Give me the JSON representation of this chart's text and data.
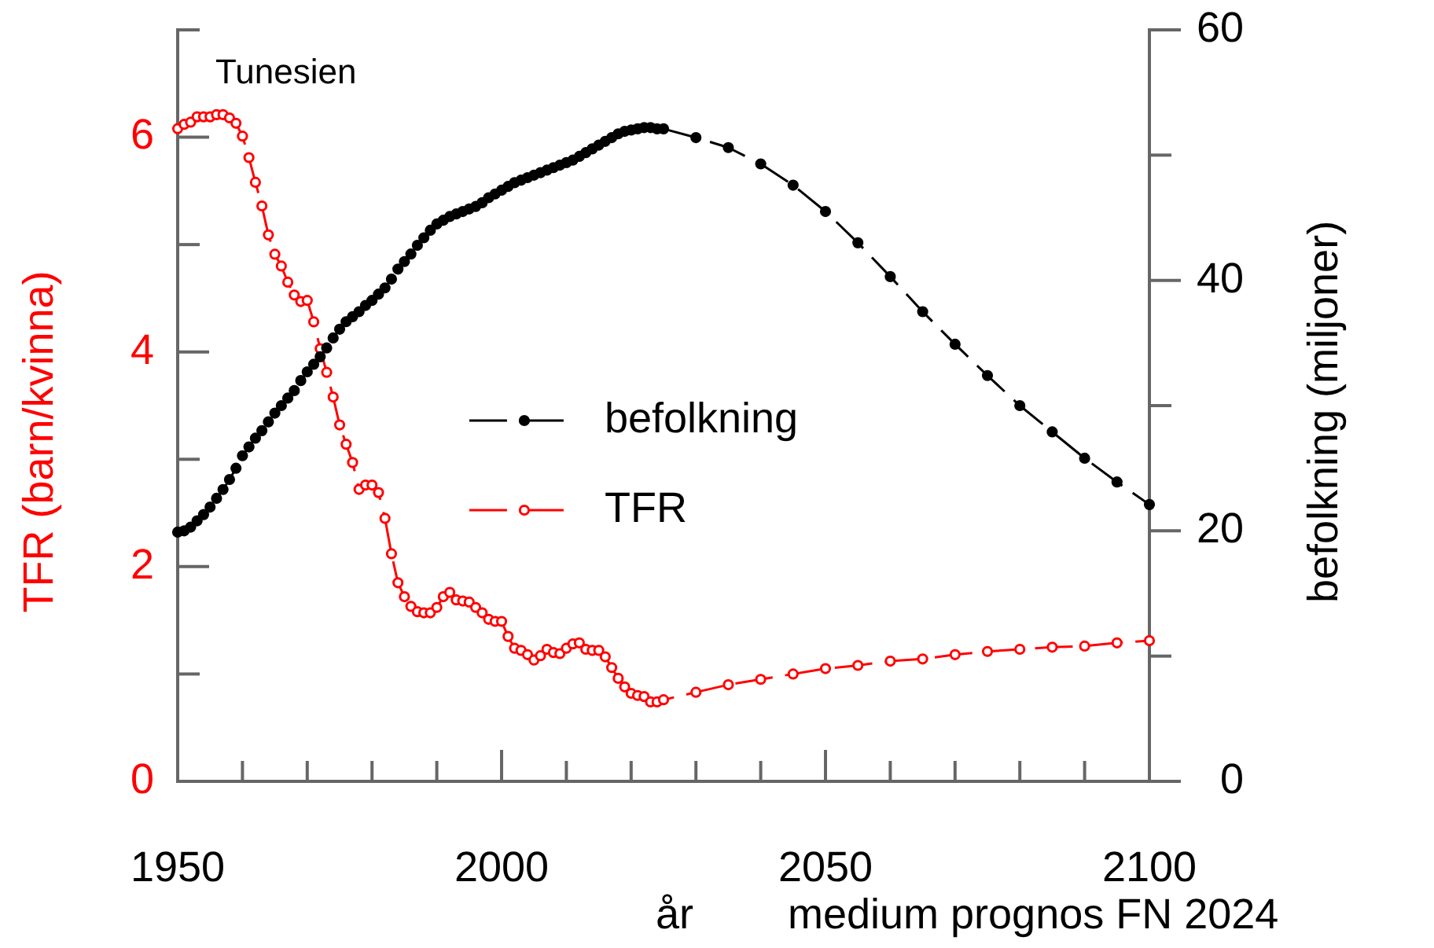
{
  "chart_data": {
    "type": "line",
    "title": "Tunesien",
    "xlabel": "år",
    "ylabel": "TFR (barn/kvinna)",
    "y2label": "befolkning (miljoner)",
    "annotations": [
      "medium prognos FN 2024"
    ],
    "xlim": [
      1950,
      2100
    ],
    "xticks": [
      1950,
      {
        "value": 1960,
        "label": null
      },
      {
        "value": 1970,
        "label": null
      },
      {
        "value": 1980,
        "label": null
      },
      {
        "value": 1990,
        "label": null
      },
      2000,
      {
        "value": 2010,
        "label": null
      },
      {
        "value": 2020,
        "label": null
      },
      {
        "value": 2030,
        "label": null
      },
      {
        "value": 2040,
        "label": null
      },
      2050,
      {
        "value": 2060,
        "label": null
      },
      {
        "value": 2070,
        "label": null
      },
      {
        "value": 2080,
        "label": null
      },
      {
        "value": 2090,
        "label": null
      },
      2100
    ],
    "ylim": [
      0,
      7
    ],
    "yticks": [
      0,
      {
        "value": 1,
        "label": null
      },
      2,
      {
        "value": 3,
        "label": null
      },
      4,
      {
        "value": 5,
        "label": null
      },
      6,
      {
        "value": 7,
        "label": null
      }
    ],
    "y2lim": [
      0,
      60
    ],
    "y2ticks": [
      0,
      {
        "value": 10,
        "label": null
      },
      20,
      {
        "value": 30,
        "label": null
      },
      40,
      {
        "value": 50,
        "label": null
      },
      60
    ],
    "grid": false,
    "legend": "center",
    "marker": "circle",
    "line_style": "dashed",
    "x": [
      1950,
      1951,
      1952,
      1953,
      1954,
      1955,
      1956,
      1957,
      1958,
      1959,
      1960,
      1961,
      1962,
      1963,
      1964,
      1965,
      1966,
      1967,
      1968,
      1969,
      1970,
      1971,
      1972,
      1973,
      1974,
      1975,
      1976,
      1977,
      1978,
      1979,
      1980,
      1981,
      1982,
      1983,
      1984,
      1985,
      1986,
      1987,
      1988,
      1989,
      1990,
      1991,
      1992,
      1993,
      1994,
      1995,
      1996,
      1997,
      1998,
      1999,
      2000,
      2001,
      2002,
      2003,
      2004,
      2005,
      2006,
      2007,
      2008,
      2009,
      2010,
      2011,
      2012,
      2013,
      2014,
      2015,
      2016,
      2017,
      2018,
      2019,
      2020,
      2021,
      2022,
      2023,
      2024,
      2025,
      2030,
      2035,
      2040,
      2045,
      2050,
      2055,
      2060,
      2065,
      2070,
      2075,
      2080,
      2085,
      2090,
      2095,
      2100
    ],
    "series": [
      {
        "name": "befolkning",
        "color": "#000000",
        "axis": "y2",
        "values": [
          19.9,
          20.0,
          20.3,
          20.8,
          21.3,
          21.9,
          22.6,
          23.3,
          24.1,
          25.0,
          26.0,
          26.7,
          27.4,
          28.0,
          28.7,
          29.4,
          30.0,
          30.6,
          31.2,
          32.0,
          32.7,
          33.3,
          33.9,
          34.6,
          35.4,
          36.1,
          36.7,
          37.1,
          37.5,
          38.0,
          38.4,
          38.9,
          39.4,
          40.1,
          40.9,
          41.5,
          42.1,
          42.8,
          43.4,
          44.0,
          44.5,
          44.8,
          45.1,
          45.3,
          45.5,
          45.7,
          45.9,
          46.2,
          46.6,
          46.9,
          47.2,
          47.5,
          47.8,
          48.0,
          48.2,
          48.4,
          48.6,
          48.8,
          49.0,
          49.2,
          49.4,
          49.6,
          49.9,
          50.2,
          50.5,
          50.8,
          51.1,
          51.4,
          51.7,
          51.9,
          52.0,
          52.1,
          52.2,
          52.2,
          52.1,
          52.1,
          51.4,
          50.6,
          49.3,
          47.6,
          45.5,
          43.0,
          40.3,
          37.5,
          34.9,
          32.4,
          30.0,
          27.9,
          25.8,
          23.9,
          22.1
        ]
      },
      {
        "name": "TFR",
        "color": "#ff0000",
        "axis": "y",
        "values": [
          6.08,
          6.12,
          6.14,
          6.19,
          6.19,
          6.19,
          6.21,
          6.21,
          6.18,
          6.13,
          6.01,
          5.81,
          5.58,
          5.36,
          5.09,
          4.91,
          4.8,
          4.65,
          4.53,
          4.47,
          4.48,
          4.28,
          4.03,
          3.81,
          3.58,
          3.32,
          3.14,
          2.97,
          2.72,
          2.76,
          2.76,
          2.69,
          2.45,
          2.12,
          1.85,
          1.72,
          1.63,
          1.58,
          1.57,
          1.57,
          1.62,
          1.72,
          1.76,
          1.69,
          1.68,
          1.67,
          1.62,
          1.57,
          1.51,
          1.49,
          1.49,
          1.35,
          1.24,
          1.22,
          1.18,
          1.13,
          1.17,
          1.23,
          1.2,
          1.19,
          1.24,
          1.28,
          1.29,
          1.23,
          1.22,
          1.22,
          1.16,
          1.06,
          0.96,
          0.88,
          0.82,
          0.8,
          0.79,
          0.74,
          0.74,
          0.76,
          0.83,
          0.9,
          0.95,
          1.0,
          1.05,
          1.08,
          1.12,
          1.14,
          1.18,
          1.21,
          1.23,
          1.25,
          1.26,
          1.29,
          1.31
        ]
      }
    ]
  }
}
